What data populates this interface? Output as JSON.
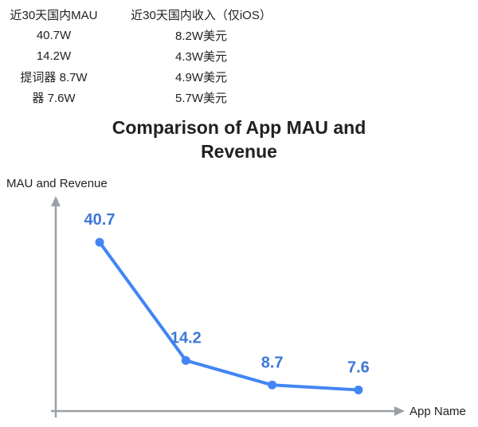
{
  "table": {
    "headers": [
      "近30天国内MAU",
      "近30天国内收入（仅iOS）"
    ],
    "rows": [
      [
        "40.7W",
        "8.2W美元"
      ],
      [
        "14.2W",
        "4.3W美元"
      ],
      [
        "提词器 8.7W",
        "4.9W美元"
      ],
      [
        "器 7.6W",
        "5.7W美元"
      ]
    ]
  },
  "title": "Comparison of App MAU and Revenue",
  "chart_data": {
    "type": "line",
    "title": "Comparison of App MAU and Revenue",
    "values": [
      40.7,
      14.2,
      8.7,
      7.6
    ],
    "point_labels": [
      "40.7",
      "14.2",
      "8.7",
      "7.6"
    ],
    "xlabel": "App Name",
    "ylabel": "MAU and Revenue",
    "x_tick_labels": [],
    "grid": "off",
    "legend": "none",
    "line_color": "#4285f4",
    "label_color": "#3c78d8",
    "axis_color": "#9aa0a6"
  }
}
